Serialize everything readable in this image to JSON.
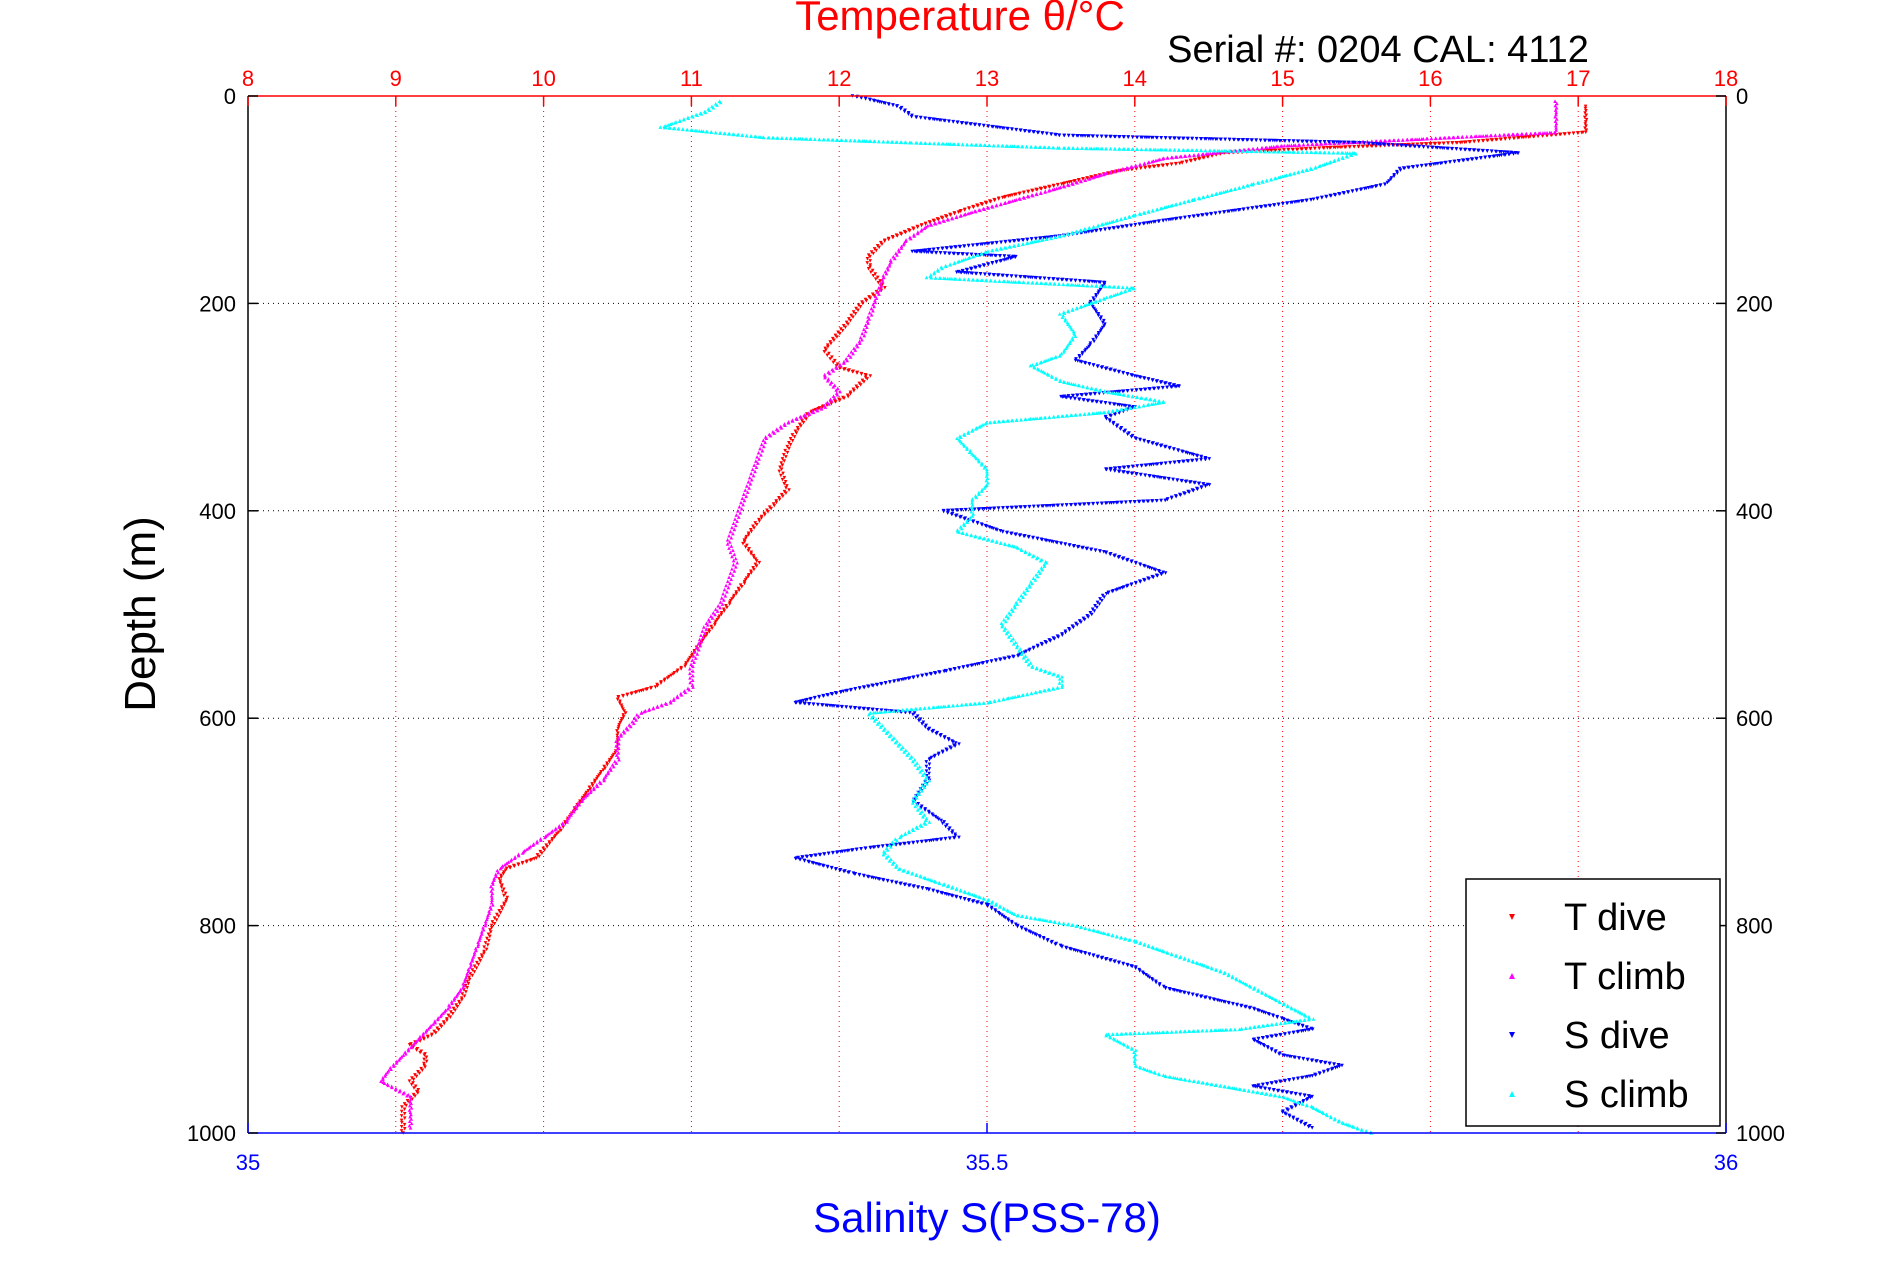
{
  "chart_data": {
    "type": "scatter",
    "title": "Temperature θ/°C",
    "subtitle": "Serial #: 0204  CAL: 4112",
    "ylabel": "Depth (m)",
    "xlabel_bottom": "Salinity S(PSS-78)",
    "ylim": [
      1000,
      0
    ],
    "y_reversed": true,
    "x_top": {
      "range": [
        8,
        18
      ],
      "ticks": [
        8,
        9,
        10,
        11,
        12,
        13,
        14,
        15,
        16,
        17,
        18
      ],
      "tick_labels": [
        "8",
        "9",
        "10",
        "11",
        "12",
        "13",
        "14",
        "15",
        "16",
        "17",
        "18"
      ]
    },
    "x_bottom": {
      "range": [
        35,
        36
      ],
      "ticks": [
        35,
        35.5,
        36
      ],
      "tick_labels": [
        "35",
        "35.5",
        "36"
      ]
    },
    "y_axis": {
      "ticks": [
        0,
        200,
        400,
        600,
        800,
        1000
      ],
      "tick_labels": [
        "0",
        "200",
        "400",
        "600",
        "800",
        "1000"
      ]
    },
    "grid": true,
    "legend_position": "bottom-right",
    "series": [
      {
        "name": "T dive",
        "axis": "top",
        "color": "#ff0000",
        "marker": "down-triangle",
        "points": [
          [
            17.05,
            10
          ],
          [
            17.05,
            25
          ],
          [
            17.05,
            35
          ],
          [
            16.2,
            45
          ],
          [
            15.3,
            50
          ],
          [
            14.6,
            55
          ],
          [
            14.3,
            65
          ],
          [
            13.9,
            72
          ],
          [
            13.5,
            85
          ],
          [
            13.1,
            98
          ],
          [
            12.8,
            112
          ],
          [
            12.55,
            125
          ],
          [
            12.3,
            140
          ],
          [
            12.2,
            155
          ],
          [
            12.2,
            165
          ],
          [
            12.3,
            185
          ],
          [
            12.15,
            200
          ],
          [
            12.05,
            220
          ],
          [
            11.9,
            245
          ],
          [
            12.0,
            262
          ],
          [
            12.2,
            270
          ],
          [
            12.05,
            290
          ],
          [
            11.8,
            305
          ],
          [
            11.7,
            325
          ],
          [
            11.65,
            340
          ],
          [
            11.6,
            360
          ],
          [
            11.65,
            380
          ],
          [
            11.55,
            395
          ],
          [
            11.45,
            410
          ],
          [
            11.35,
            430
          ],
          [
            11.45,
            450
          ],
          [
            11.35,
            470
          ],
          [
            11.25,
            490
          ],
          [
            11.15,
            510
          ],
          [
            11.05,
            530
          ],
          [
            10.95,
            550
          ],
          [
            10.75,
            570
          ],
          [
            10.5,
            580
          ],
          [
            10.55,
            595
          ],
          [
            10.5,
            610
          ],
          [
            10.5,
            630
          ],
          [
            10.4,
            650
          ],
          [
            10.3,
            670
          ],
          [
            10.2,
            690
          ],
          [
            10.1,
            710
          ],
          [
            9.95,
            735
          ],
          [
            9.75,
            745
          ],
          [
            9.7,
            755
          ],
          [
            9.75,
            775
          ],
          [
            9.65,
            800
          ],
          [
            9.6,
            825
          ],
          [
            9.5,
            850
          ],
          [
            9.45,
            870
          ],
          [
            9.35,
            890
          ],
          [
            9.25,
            905
          ],
          [
            9.1,
            915
          ],
          [
            9.2,
            925
          ],
          [
            9.2,
            935
          ],
          [
            9.1,
            950
          ],
          [
            9.15,
            960
          ],
          [
            9.05,
            975
          ],
          [
            9.05,
            990
          ],
          [
            9.05,
            1000
          ]
        ]
      },
      {
        "name": "T climb",
        "axis": "top",
        "color": "#ff00ff",
        "marker": "up-triangle",
        "points": [
          [
            16.85,
            5
          ],
          [
            16.85,
            20
          ],
          [
            16.85,
            35
          ],
          [
            15.0,
            48
          ],
          [
            14.2,
            60
          ],
          [
            13.8,
            75
          ],
          [
            13.5,
            88
          ],
          [
            13.2,
            100
          ],
          [
            12.9,
            112
          ],
          [
            12.6,
            125
          ],
          [
            12.45,
            140
          ],
          [
            12.35,
            160
          ],
          [
            12.3,
            175
          ],
          [
            12.25,
            195
          ],
          [
            12.2,
            215
          ],
          [
            12.15,
            235
          ],
          [
            12.05,
            255
          ],
          [
            11.9,
            270
          ],
          [
            12.0,
            285
          ],
          [
            11.9,
            300
          ],
          [
            11.65,
            315
          ],
          [
            11.5,
            330
          ],
          [
            11.45,
            350
          ],
          [
            11.4,
            370
          ],
          [
            11.35,
            390
          ],
          [
            11.3,
            410
          ],
          [
            11.25,
            430
          ],
          [
            11.3,
            450
          ],
          [
            11.25,
            470
          ],
          [
            11.2,
            490
          ],
          [
            11.1,
            510
          ],
          [
            11.05,
            530
          ],
          [
            11.0,
            550
          ],
          [
            11.0,
            570
          ],
          [
            10.85,
            585
          ],
          [
            10.65,
            595
          ],
          [
            10.6,
            605
          ],
          [
            10.5,
            620
          ],
          [
            10.5,
            640
          ],
          [
            10.4,
            660
          ],
          [
            10.25,
            680
          ],
          [
            10.15,
            700
          ],
          [
            10.0,
            715
          ],
          [
            9.85,
            730
          ],
          [
            9.7,
            745
          ],
          [
            9.65,
            760
          ],
          [
            9.65,
            780
          ],
          [
            9.6,
            800
          ],
          [
            9.55,
            820
          ],
          [
            9.5,
            840
          ],
          [
            9.45,
            860
          ],
          [
            9.35,
            880
          ],
          [
            9.25,
            895
          ],
          [
            9.15,
            910
          ],
          [
            9.05,
            925
          ],
          [
            8.95,
            940
          ],
          [
            8.9,
            950
          ],
          [
            9.1,
            965
          ],
          [
            9.1,
            980
          ],
          [
            9.1,
            995
          ]
        ]
      },
      {
        "name": "S dive",
        "axis": "bottom",
        "color": "#0000ff",
        "marker": "down-triangle",
        "points": [
          [
            35.41,
            0
          ],
          [
            35.44,
            10
          ],
          [
            35.45,
            20
          ],
          [
            35.55,
            38
          ],
          [
            35.75,
            45
          ],
          [
            35.86,
            55
          ],
          [
            35.78,
            70
          ],
          [
            35.77,
            85
          ],
          [
            35.72,
            100
          ],
          [
            35.62,
            120
          ],
          [
            35.55,
            135
          ],
          [
            35.45,
            150
          ],
          [
            35.52,
            155
          ],
          [
            35.48,
            170
          ],
          [
            35.58,
            180
          ],
          [
            35.57,
            200
          ],
          [
            35.58,
            220
          ],
          [
            35.57,
            240
          ],
          [
            35.56,
            255
          ],
          [
            35.6,
            270
          ],
          [
            35.63,
            280
          ],
          [
            35.55,
            290
          ],
          [
            35.6,
            300
          ],
          [
            35.58,
            310
          ],
          [
            35.6,
            330
          ],
          [
            35.65,
            350
          ],
          [
            35.58,
            360
          ],
          [
            35.65,
            375
          ],
          [
            35.62,
            390
          ],
          [
            35.47,
            400
          ],
          [
            35.51,
            420
          ],
          [
            35.58,
            440
          ],
          [
            35.62,
            460
          ],
          [
            35.58,
            480
          ],
          [
            35.57,
            500
          ],
          [
            35.55,
            520
          ],
          [
            35.52,
            540
          ],
          [
            35.47,
            555
          ],
          [
            35.4,
            575
          ],
          [
            35.37,
            585
          ],
          [
            35.45,
            595
          ],
          [
            35.46,
            610
          ],
          [
            35.48,
            625
          ],
          [
            35.46,
            640
          ],
          [
            35.46,
            660
          ],
          [
            35.45,
            680
          ],
          [
            35.47,
            700
          ],
          [
            35.48,
            715
          ],
          [
            35.42,
            725
          ],
          [
            35.37,
            735
          ],
          [
            35.41,
            750
          ],
          [
            35.46,
            765
          ],
          [
            35.5,
            780
          ],
          [
            35.52,
            800
          ],
          [
            35.55,
            820
          ],
          [
            35.6,
            840
          ],
          [
            35.62,
            860
          ],
          [
            35.65,
            870
          ],
          [
            35.68,
            880
          ],
          [
            35.7,
            890
          ],
          [
            35.72,
            900
          ],
          [
            35.68,
            910
          ],
          [
            35.7,
            925
          ],
          [
            35.74,
            935
          ],
          [
            35.72,
            945
          ],
          [
            35.68,
            955
          ],
          [
            35.72,
            965
          ],
          [
            35.7,
            980
          ],
          [
            35.72,
            995
          ]
        ]
      },
      {
        "name": "S climb",
        "axis": "bottom",
        "color": "#00ffff",
        "marker": "up-triangle",
        "points": [
          [
            35.32,
            5
          ],
          [
            35.31,
            15
          ],
          [
            35.28,
            30
          ],
          [
            35.35,
            40
          ],
          [
            35.45,
            45
          ],
          [
            35.55,
            50
          ],
          [
            35.75,
            55
          ],
          [
            35.72,
            70
          ],
          [
            35.68,
            85
          ],
          [
            35.64,
            100
          ],
          [
            35.6,
            115
          ],
          [
            35.55,
            135
          ],
          [
            35.5,
            150
          ],
          [
            35.47,
            165
          ],
          [
            35.46,
            175
          ],
          [
            35.6,
            185
          ],
          [
            35.58,
            195
          ],
          [
            35.55,
            210
          ],
          [
            35.56,
            230
          ],
          [
            35.55,
            250
          ],
          [
            35.53,
            260
          ],
          [
            35.55,
            275
          ],
          [
            35.58,
            285
          ],
          [
            35.62,
            295
          ],
          [
            35.58,
            305
          ],
          [
            35.5,
            315
          ],
          [
            35.48,
            330
          ],
          [
            35.49,
            345
          ],
          [
            35.5,
            360
          ],
          [
            35.5,
            375
          ],
          [
            35.49,
            390
          ],
          [
            35.49,
            405
          ],
          [
            35.48,
            420
          ],
          [
            35.52,
            435
          ],
          [
            35.54,
            450
          ],
          [
            35.53,
            470
          ],
          [
            35.52,
            490
          ],
          [
            35.51,
            510
          ],
          [
            35.52,
            530
          ],
          [
            35.53,
            550
          ],
          [
            35.55,
            560
          ],
          [
            35.55,
            570
          ],
          [
            35.5,
            585
          ],
          [
            35.42,
            595
          ],
          [
            35.43,
            610
          ],
          [
            35.44,
            625
          ],
          [
            35.45,
            640
          ],
          [
            35.46,
            660
          ],
          [
            35.45,
            680
          ],
          [
            35.46,
            700
          ],
          [
            35.44,
            715
          ],
          [
            35.43,
            730
          ],
          [
            35.44,
            745
          ],
          [
            35.47,
            760
          ],
          [
            35.5,
            775
          ],
          [
            35.52,
            790
          ],
          [
            35.56,
            800
          ],
          [
            35.6,
            815
          ],
          [
            35.63,
            830
          ],
          [
            35.66,
            845
          ],
          [
            35.68,
            860
          ],
          [
            35.7,
            875
          ],
          [
            35.72,
            890
          ],
          [
            35.67,
            900
          ],
          [
            35.58,
            905
          ],
          [
            35.6,
            920
          ],
          [
            35.6,
            935
          ],
          [
            35.62,
            945
          ],
          [
            35.66,
            955
          ],
          [
            35.7,
            965
          ],
          [
            35.72,
            975
          ],
          [
            35.74,
            990
          ],
          [
            35.76,
            1000
          ]
        ]
      }
    ]
  }
}
